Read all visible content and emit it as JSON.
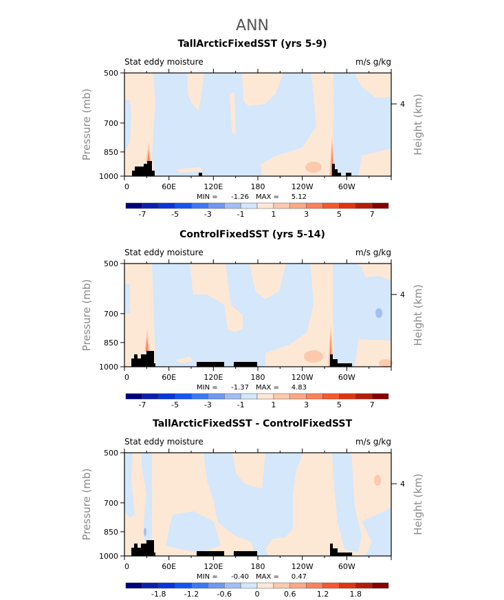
{
  "figure": {
    "title": "ANN"
  },
  "colorbar_colors": [
    "#00007f",
    "#0b1fae",
    "#0535dc",
    "#1455f2",
    "#3d78f4",
    "#6f97f0",
    "#a3bdf5",
    "#d4e7fb",
    "#fde8d6",
    "#fcc9ac",
    "#fca884",
    "#fb8259",
    "#f8582c",
    "#df3411",
    "#b51d0a",
    "#870000"
  ],
  "chart_data": [
    {
      "type": "contour",
      "title": "TallArcticFixedSST (yrs 5-9)",
      "left_label": "Stat eddy moisture",
      "right_label": "m/s g/kg",
      "ylabel": "Pressure (mb)",
      "ylabel_right": "Height (km)",
      "y_scale": "log",
      "ylim": [
        1000,
        500
      ],
      "yticks": [
        "500",
        "700",
        "850",
        "1000"
      ],
      "yticks_right": [
        "4"
      ],
      "xlim": [
        0,
        360
      ],
      "xticks": [
        "0",
        "60E",
        "120E",
        "180",
        "120W",
        "60W"
      ],
      "min_label": "MIN =",
      "min": "-1.26",
      "max_label": "MAX =",
      "max": "5.12",
      "levels": [
        -7,
        -6,
        -5,
        -4,
        -3,
        -2,
        -1,
        0,
        1,
        2,
        3,
        4,
        5,
        6,
        7
      ],
      "colorbar_labels": [
        "-7",
        "-5",
        "-3",
        "-1",
        "1",
        "3",
        "5",
        "7"
      ]
    },
    {
      "type": "contour",
      "title": "ControlFixedSST (yrs 5-14)",
      "left_label": "Stat eddy moisture",
      "right_label": "m/s g/kg",
      "ylabel": "Pressure (mb)",
      "ylabel_right": "Height (km)",
      "y_scale": "log",
      "ylim": [
        1000,
        500
      ],
      "yticks": [
        "500",
        "700",
        "850",
        "1000"
      ],
      "yticks_right": [
        "4"
      ],
      "xlim": [
        0,
        360
      ],
      "xticks": [
        "0",
        "60E",
        "120E",
        "180",
        "120W",
        "60W"
      ],
      "min_label": "MIN =",
      "min": "-1.37",
      "max_label": "MAX =",
      "max": "4.83",
      "levels": [
        -7,
        -6,
        -5,
        -4,
        -3,
        -2,
        -1,
        0,
        1,
        2,
        3,
        4,
        5,
        6,
        7
      ],
      "colorbar_labels": [
        "-7",
        "-5",
        "-3",
        "-1",
        "1",
        "3",
        "5",
        "7"
      ]
    },
    {
      "type": "contour",
      "title": "TallArcticFixedSST - ControlFixedSST",
      "left_label": "Stat eddy moisture",
      "right_label": "m/s g/kg",
      "ylabel": "Pressure (mb)",
      "ylabel_right": "Height (km)",
      "y_scale": "log",
      "ylim": [
        1000,
        500
      ],
      "yticks": [
        "500",
        "700",
        "850",
        "1000"
      ],
      "yticks_right": [
        "4"
      ],
      "xlim": [
        0,
        360
      ],
      "xticks": [
        "0",
        "60E",
        "120E",
        "180",
        "120W",
        "60W"
      ],
      "min_label": "MIN =",
      "min": "-0.40",
      "max_label": "MAX =",
      "max": "0.47",
      "levels": [
        -2.1,
        -1.8,
        -1.5,
        -1.2,
        -0.9,
        -0.6,
        -0.3,
        0,
        0.3,
        0.6,
        0.9,
        1.2,
        1.5,
        1.8,
        2.1
      ],
      "colorbar_labels": [
        "-1.8",
        "-1.2",
        "-0.6",
        "0",
        "0.6",
        "1.2",
        "1.8"
      ]
    }
  ]
}
